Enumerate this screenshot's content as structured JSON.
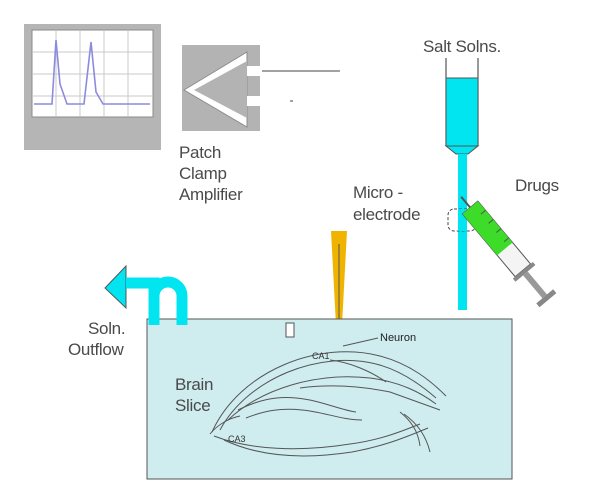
{
  "labels": {
    "patch": "Patch",
    "clamp": "Clamp",
    "amplifier": "Amplifier",
    "salt_solns": "Salt Solns.",
    "micro": "Micro -",
    "electrode": "electrode",
    "drugs": "Drugs",
    "soln": "Soln.",
    "outflow": "Outflow",
    "neuron": "Neuron",
    "brain": "Brain",
    "slice": "Slice",
    "ca3": "CA3",
    "ca1": "CA1"
  },
  "colors": {
    "cyan": "#00e5f0",
    "bath": "#cfecef",
    "electrode": "#f0b400",
    "drug": "#3cdc28",
    "monitor_case": "#b5b5b5",
    "trace": "#8c8cdc"
  }
}
